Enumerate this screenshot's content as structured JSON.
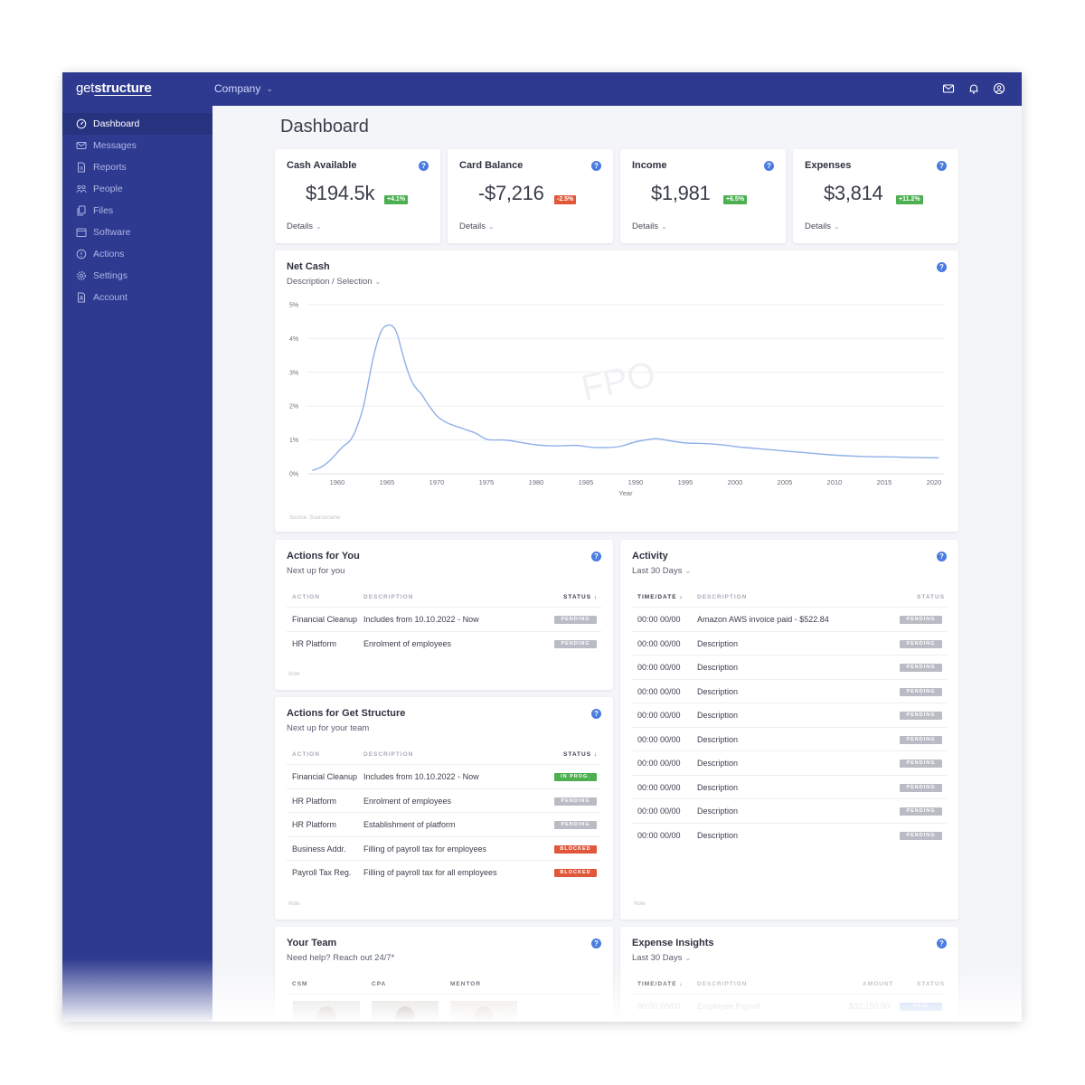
{
  "header": {
    "logo_part1": "get",
    "logo_part2": "structure",
    "company_label": "Company"
  },
  "sidebar": {
    "items": [
      {
        "label": "Dashboard",
        "icon": "dashboard-icon"
      },
      {
        "label": "Messages",
        "icon": "mail-icon"
      },
      {
        "label": "Reports",
        "icon": "document-icon"
      },
      {
        "label": "People",
        "icon": "people-icon"
      },
      {
        "label": "Files",
        "icon": "files-icon"
      },
      {
        "label": "Software",
        "icon": "window-icon"
      },
      {
        "label": "Actions",
        "icon": "alert-circle-icon"
      },
      {
        "label": "Settings",
        "icon": "gear-icon"
      },
      {
        "label": "Account",
        "icon": "account-doc-icon"
      }
    ]
  },
  "page": {
    "title": "Dashboard"
  },
  "kpis": [
    {
      "title": "Cash Available",
      "value": "$194.5k",
      "badge": "+4.1%",
      "trend": "up",
      "details": "Details"
    },
    {
      "title": "Card Balance",
      "value": "-$7,216",
      "badge": "-2.5%",
      "trend": "down",
      "details": "Details"
    },
    {
      "title": "Income",
      "value": "$1,981",
      "badge": "+6.5%",
      "trend": "up",
      "details": "Details"
    },
    {
      "title": "Expenses",
      "value": "$3,814",
      "badge": "+11.2%",
      "trend": "up",
      "details": "Details"
    }
  ],
  "net_cash": {
    "title": "Net Cash",
    "subtitle": "Description / Selection",
    "watermark": "FPO",
    "source": "Source: Sourcename"
  },
  "chart_data": {
    "type": "line",
    "title": "",
    "xlabel": "Year",
    "ylabel": "",
    "xlim": [
      1957,
      2021
    ],
    "ylim": [
      0,
      5
    ],
    "x_ticks": [
      1960,
      1965,
      1970,
      1975,
      1980,
      1985,
      1990,
      1995,
      2000,
      2005,
      2010,
      2015,
      2020
    ],
    "y_ticks": [
      "0%",
      "1%",
      "2%",
      "3%",
      "4%",
      "5%"
    ],
    "grid": true,
    "series": [
      {
        "color": "#8fb0e8",
        "x": [
          1957.5,
          1958.5,
          1959.5,
          1960.5,
          1961.5,
          1962.5,
          1963,
          1963.5,
          1964,
          1964.5,
          1965,
          1965.5,
          1966,
          1966.5,
          1967,
          1967.5,
          1968,
          1968.5,
          1969,
          1969.5,
          1970,
          1971,
          1972,
          1973,
          1974,
          1975,
          1976,
          1977,
          1978,
          1979,
          1980,
          1982,
          1984,
          1985,
          1986,
          1988,
          1989,
          1990,
          1991,
          1992,
          1993,
          1995,
          1997,
          1999,
          2000,
          2002,
          2004,
          2006,
          2008,
          2010,
          2012,
          2014,
          2016,
          2018,
          2020.5
        ],
        "y": [
          0.1,
          0.2,
          0.45,
          0.8,
          1.0,
          1.8,
          2.5,
          3.3,
          3.9,
          4.3,
          4.4,
          4.4,
          4.2,
          3.6,
          3.1,
          2.7,
          2.5,
          2.35,
          2.1,
          1.9,
          1.7,
          1.5,
          1.4,
          1.3,
          1.2,
          1.0,
          1.0,
          1.0,
          0.95,
          0.9,
          0.85,
          0.82,
          0.85,
          0.8,
          0.77,
          0.78,
          0.85,
          0.95,
          1.0,
          1.05,
          1.0,
          0.9,
          0.9,
          0.85,
          0.8,
          0.75,
          0.7,
          0.65,
          0.6,
          0.55,
          0.52,
          0.5,
          0.5,
          0.48,
          0.47
        ]
      }
    ]
  },
  "actions_for_you": {
    "title": "Actions for You",
    "subtitle": "Next up for you",
    "headers": {
      "action": "ACTION",
      "description": "DESCRIPTION",
      "status": "STATUS ↓"
    },
    "rows": [
      {
        "action": "Financial Cleanup",
        "description": "Includes from 10.10.2022 - Now",
        "status": "PENDING",
        "kind": "pending"
      },
      {
        "action": "HR Platform",
        "description": "Enrolment of employees",
        "status": "PENDING",
        "kind": "pending"
      }
    ],
    "note": "Note"
  },
  "actions_for_gs": {
    "title": "Actions for Get Structure",
    "subtitle": "Next up for your team",
    "headers": {
      "action": "ACTION",
      "description": "DESCRIPTION",
      "status": "STATUS ↓"
    },
    "rows": [
      {
        "action": "Financial Cleanup",
        "description": "Includes from 10.10.2022 - Now",
        "status": "IN PROG.",
        "kind": "inprog"
      },
      {
        "action": "HR Platform",
        "description": "Enrolment of employees",
        "status": "PENDING",
        "kind": "pending"
      },
      {
        "action": "HR Platform",
        "description": "Establishment of platform",
        "status": "PENDING",
        "kind": "pending"
      },
      {
        "action": "Business Addr.",
        "description": "Filling of payroll tax for employees",
        "status": "BLOCKED",
        "kind": "blocked"
      },
      {
        "action": "Payroll Tax Reg.",
        "description": "Filling of payroll tax for all employees",
        "status": "BLOCKED",
        "kind": "blocked"
      }
    ],
    "note": "Note"
  },
  "activity": {
    "title": "Activity",
    "subtitle": "Last 30 Days",
    "headers": {
      "time": "TIME/DATE ↓",
      "description": "DESCRIPTION",
      "status": "STATUS"
    },
    "rows": [
      {
        "time": "00:00 00/00",
        "description": "Amazon AWS invoice paid - $522.84",
        "status": "PENDING"
      },
      {
        "time": "00:00 00/00",
        "description": "Description",
        "status": "PENDING"
      },
      {
        "time": "00:00 00/00",
        "description": "Description",
        "status": "PENDING"
      },
      {
        "time": "00:00 00/00",
        "description": "Description",
        "status": "PENDING"
      },
      {
        "time": "00:00 00/00",
        "description": "Description",
        "status": "PENDING"
      },
      {
        "time": "00:00 00/00",
        "description": "Description",
        "status": "PENDING"
      },
      {
        "time": "00:00 00/00",
        "description": "Description",
        "status": "PENDING"
      },
      {
        "time": "00:00 00/00",
        "description": "Description",
        "status": "PENDING"
      },
      {
        "time": "00:00 00/00",
        "description": "Description",
        "status": "PENDING"
      },
      {
        "time": "00:00 00/00",
        "description": "Description",
        "status": "PENDING"
      }
    ],
    "note": "Note"
  },
  "your_team": {
    "title": "Your Team",
    "subtitle": "Need help? Reach out 24/7*",
    "headers": {
      "csm": "CSM",
      "cpa": "CPA",
      "mentor": "MENTOR"
    }
  },
  "expense_insights": {
    "title": "Expense Insights",
    "subtitle": "Last 30 Days",
    "headers": {
      "time": "TIME/DATE ↓",
      "description": "DESCRIPTION",
      "amount": "AMOUNT",
      "status": "STATUS"
    },
    "rows": [
      {
        "time": "00:00 00/00",
        "description": "Employee Payroll",
        "amount": "$32,150.00",
        "status": "PAID"
      }
    ]
  },
  "colors": {
    "primary": "#2e3a8f",
    "accent": "#4a7be0",
    "green": "#4caf50",
    "red": "#e0573a"
  }
}
